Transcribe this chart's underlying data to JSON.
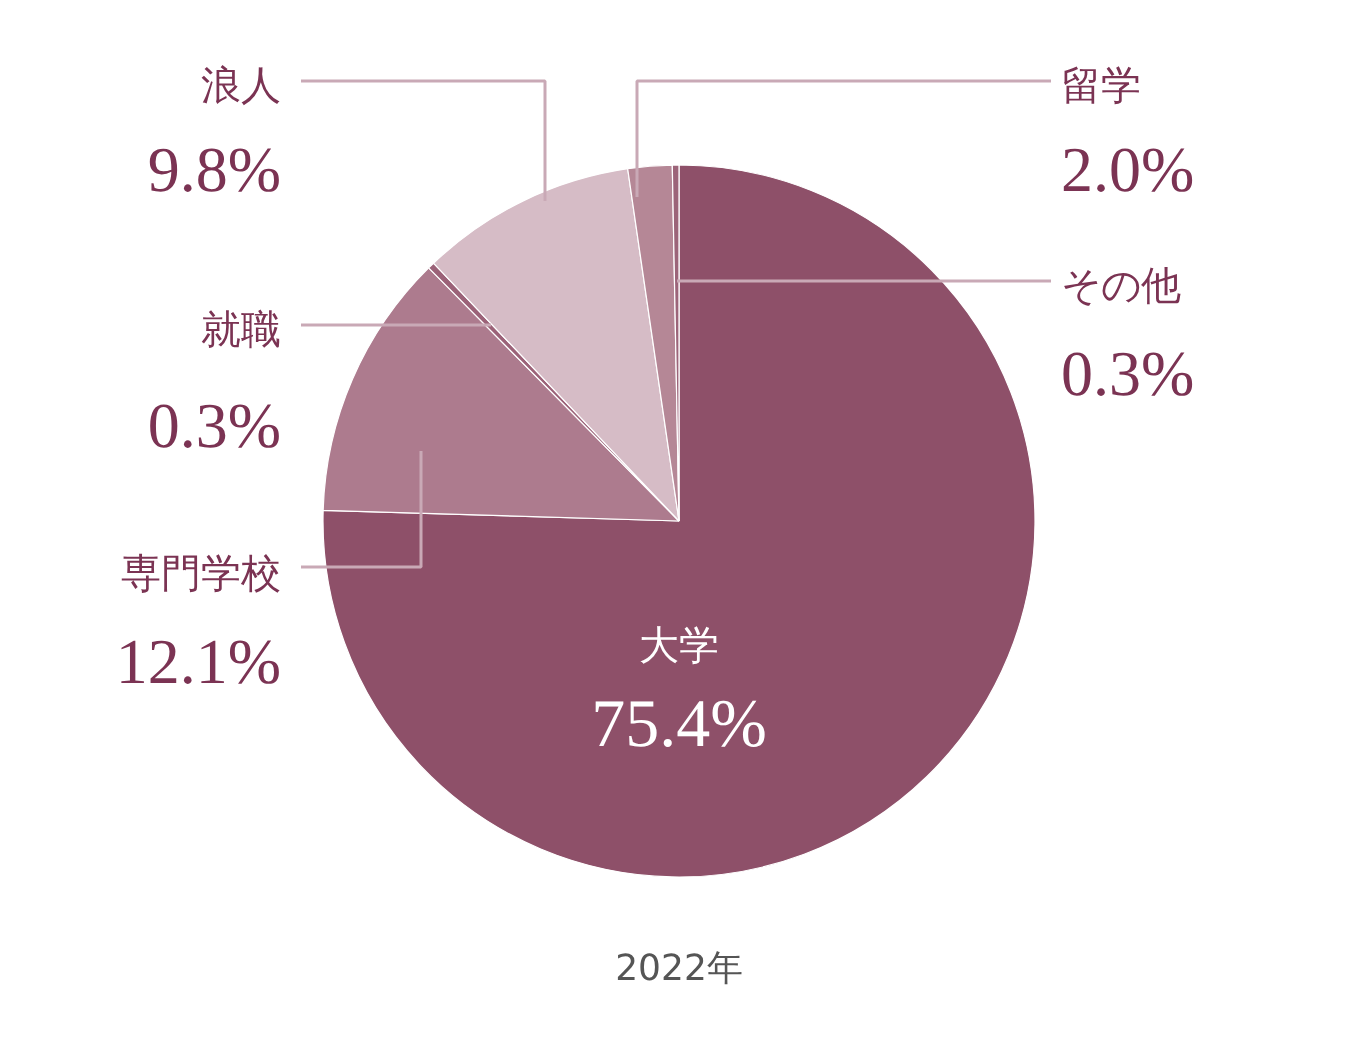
{
  "chart_data": {
    "type": "pie",
    "categories": [
      "大学",
      "専門学校",
      "就職",
      "浪人",
      "留学",
      "その他"
    ],
    "values": [
      75.4,
      12.1,
      0.3,
      9.8,
      2.0,
      0.3
    ],
    "colors": [
      "#8e5069",
      "#ad7b8e",
      "#9b6278",
      "#d6bcc6",
      "#b58796",
      "#9c6479"
    ],
    "value_labels": [
      "75.4%",
      "12.1%",
      "0.3%",
      "9.8%",
      "2.0%",
      "0.3%"
    ],
    "annotations": [
      "2022年"
    ]
  }
}
